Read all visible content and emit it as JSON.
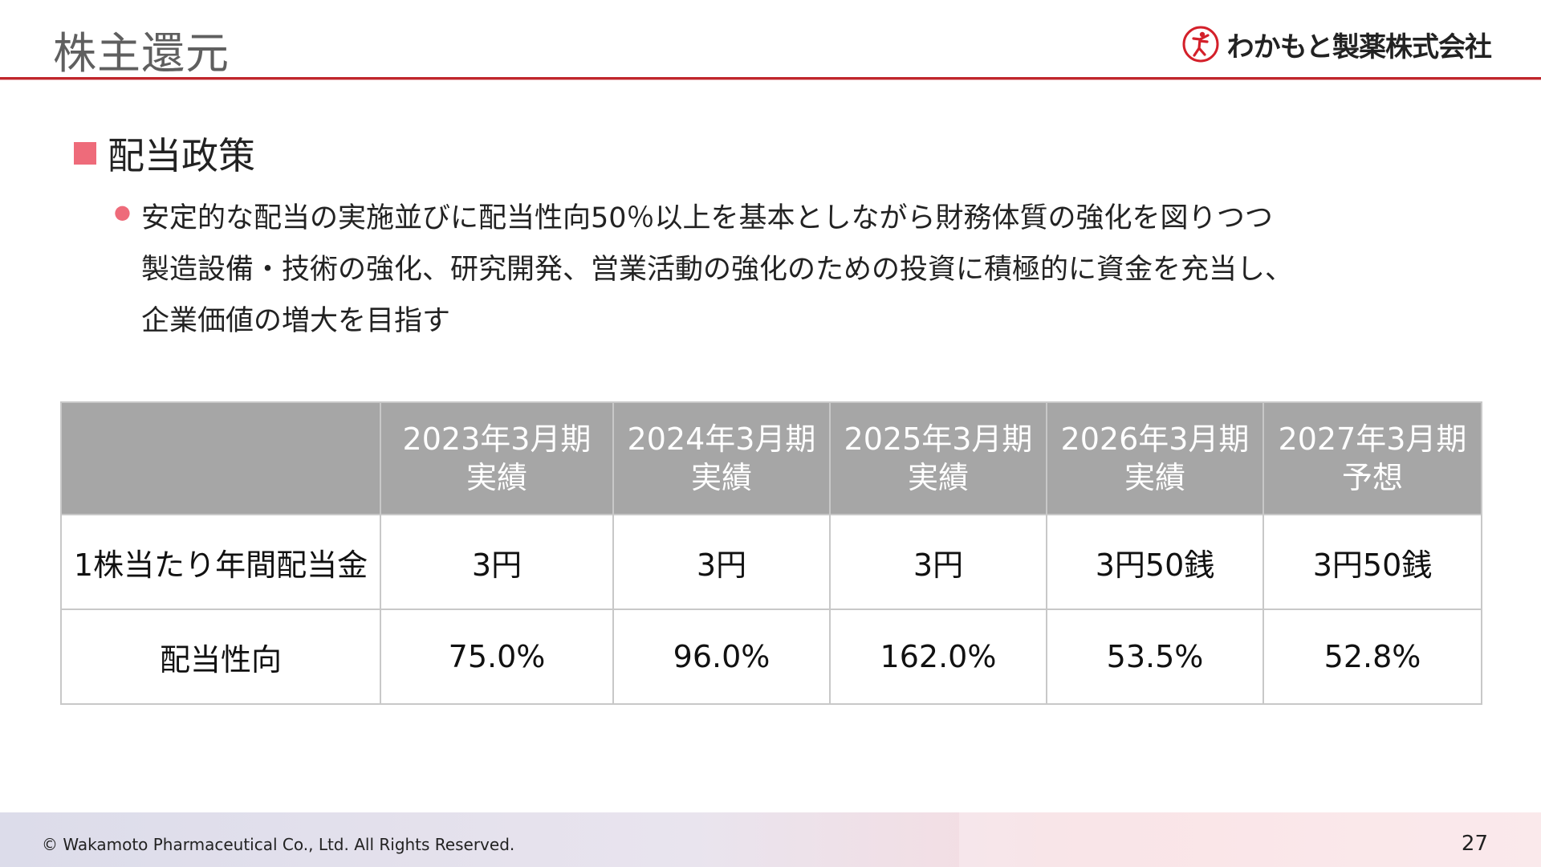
{
  "page": {
    "title": "株主還元",
    "logo_text": "わかもと製薬株式会社"
  },
  "section": {
    "heading": "配当政策",
    "bullet_lines": [
      "安定的な配当の実施並びに配当性向50％以上を基本としながら財務体質の強化を図りつつ",
      "製造設備・技術の強化、研究開発、営業活動の強化のための投資に積極的に資金を充当し、",
      "企業価値の増大を目指す"
    ]
  },
  "table": {
    "columns": [
      {
        "line1": "2023年3月期",
        "line2": "実績"
      },
      {
        "line1": "2024年3月期",
        "line2": "実績"
      },
      {
        "line1": "2025年3月期",
        "line2": "実績"
      },
      {
        "line1": "2026年3月期",
        "line2": "実績"
      },
      {
        "line1": "2027年3月期",
        "line2": "予想"
      }
    ],
    "rows": [
      {
        "label": "1株当たり年間配当金",
        "values": [
          "3円",
          "3円",
          "3円",
          "3円50銭",
          "3円50銭"
        ]
      },
      {
        "label": "配当性向",
        "values": [
          "75.0%",
          "96.0%",
          "162.0%",
          "53.5%",
          "52.8%"
        ]
      }
    ]
  },
  "footer": {
    "copyright": "© Wakamoto Pharmaceutical Co., Ltd. All Rights Reserved.",
    "page_number": "27"
  },
  "colors": {
    "accent_red": "#c0262c",
    "bullet_pink": "#ee6b7a",
    "header_gray": "#a6a6a6"
  }
}
